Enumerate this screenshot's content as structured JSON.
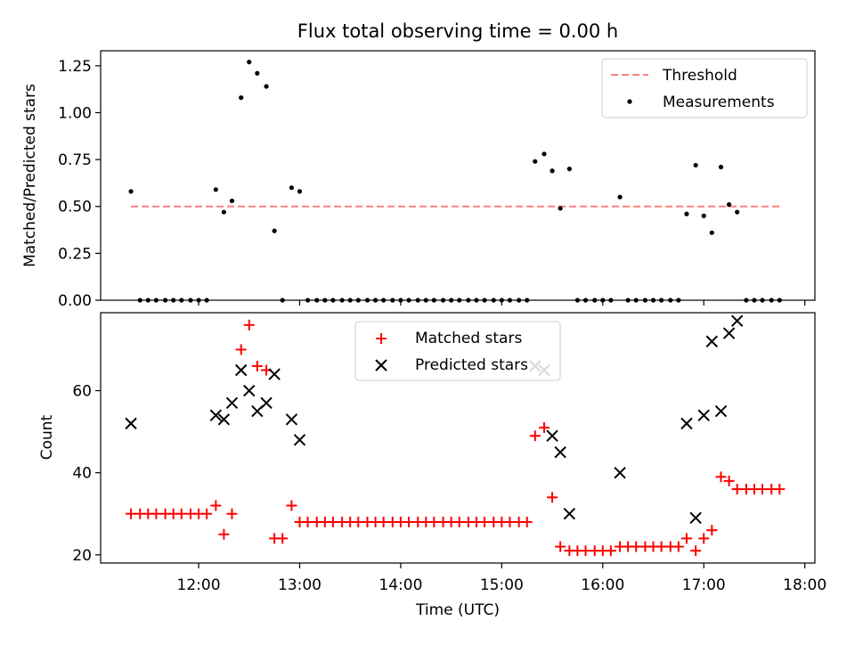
{
  "figure": {
    "title": "Flux total observing time = 0.00 h",
    "xlabel": "Time (UTC)"
  },
  "chart_data": [
    {
      "type": "scatter",
      "ylabel": "Matched/Predicted stars",
      "ylim": [
        0,
        1.33
      ],
      "yticks": [
        0.0,
        0.25,
        0.5,
        0.75,
        1.0,
        1.25
      ],
      "ytick_labels": [
        "0.00",
        "0.25",
        "0.50",
        "0.75",
        "1.00",
        "1.25"
      ],
      "xlim_hours": [
        11.03,
        18.1
      ],
      "legend_position": "top-right",
      "threshold": {
        "name": "Threshold",
        "color": "#ff7f7f",
        "value": 0.5,
        "x_range": [
          11.33,
          17.77
        ]
      },
      "series": [
        {
          "name": "Measurements",
          "color": "#000000",
          "marker": "dot",
          "x": [
            11.33,
            11.42,
            11.5,
            11.58,
            11.67,
            11.75,
            11.83,
            11.92,
            12.0,
            12.08,
            12.17,
            12.25,
            12.33,
            12.42,
            12.5,
            12.58,
            12.67,
            12.75,
            12.83,
            12.92,
            13.0,
            13.08,
            13.17,
            13.25,
            13.33,
            13.42,
            13.5,
            13.58,
            13.67,
            13.75,
            13.83,
            13.92,
            14.0,
            14.08,
            14.17,
            14.25,
            14.33,
            14.42,
            14.5,
            14.58,
            14.67,
            14.75,
            14.83,
            14.92,
            15.0,
            15.08,
            15.17,
            15.25,
            15.33,
            15.42,
            15.5,
            15.58,
            15.67,
            15.75,
            15.83,
            15.92,
            16.0,
            16.08,
            16.17,
            16.25,
            16.33,
            16.42,
            16.5,
            16.58,
            16.67,
            16.75,
            16.83,
            16.92,
            17.0,
            17.08,
            17.17,
            17.25,
            17.33,
            17.42,
            17.5,
            17.58,
            17.67,
            17.75
          ],
          "y": [
            0.58,
            0,
            0,
            0,
            0,
            0,
            0,
            0,
            0,
            0,
            0.59,
            0.47,
            0.53,
            1.08,
            1.27,
            1.21,
            1.14,
            0.37,
            0,
            0.6,
            0.58,
            0,
            0,
            0,
            0,
            0,
            0,
            0,
            0,
            0,
            0,
            0,
            0,
            0,
            0,
            0,
            0,
            0,
            0,
            0,
            0,
            0,
            0,
            0,
            0,
            0,
            0,
            0,
            0.74,
            0.78,
            0.69,
            0.49,
            0.7,
            0,
            0,
            0,
            0,
            0,
            0.55,
            0,
            0,
            0,
            0,
            0,
            0,
            0,
            0.46,
            0.72,
            0.45,
            0.36,
            0.71,
            0.51,
            0.47,
            0,
            0,
            0,
            0,
            0
          ]
        }
      ]
    },
    {
      "type": "scatter",
      "ylabel": "Count",
      "ylim": [
        18,
        79
      ],
      "yticks": [
        20,
        40,
        60
      ],
      "ytick_labels": [
        "20",
        "40",
        "60"
      ],
      "xlim_hours": [
        11.03,
        18.1
      ],
      "xticks_hours": [
        12,
        13,
        14,
        15,
        16,
        17,
        18
      ],
      "xtick_labels": [
        "12:00",
        "13:00",
        "14:00",
        "15:00",
        "16:00",
        "17:00",
        "18:00"
      ],
      "legend_position": "top-center",
      "series": [
        {
          "name": "Matched stars",
          "color": "#ff0000",
          "marker": "plus",
          "x": [
            11.33,
            11.42,
            11.5,
            11.58,
            11.67,
            11.75,
            11.83,
            11.92,
            12.0,
            12.08,
            12.17,
            12.25,
            12.33,
            12.42,
            12.5,
            12.58,
            12.67,
            12.75,
            12.83,
            12.92,
            13.0,
            13.08,
            13.17,
            13.25,
            13.33,
            13.42,
            13.5,
            13.58,
            13.67,
            13.75,
            13.83,
            13.92,
            14.0,
            14.08,
            14.17,
            14.25,
            14.33,
            14.42,
            14.5,
            14.58,
            14.67,
            14.75,
            14.83,
            14.92,
            15.0,
            15.08,
            15.17,
            15.25,
            15.33,
            15.42,
            15.5,
            15.58,
            15.67,
            15.75,
            15.83,
            15.92,
            16.0,
            16.08,
            16.17,
            16.25,
            16.33,
            16.42,
            16.5,
            16.58,
            16.67,
            16.75,
            16.83,
            16.92,
            17.0,
            17.08,
            17.17,
            17.25,
            17.33,
            17.42,
            17.5,
            17.58,
            17.67,
            17.75
          ],
          "y": [
            30,
            30,
            30,
            30,
            30,
            30,
            30,
            30,
            30,
            30,
            32,
            25,
            30,
            70,
            76,
            66,
            65,
            24,
            24,
            32,
            28,
            28,
            28,
            28,
            28,
            28,
            28,
            28,
            28,
            28,
            28,
            28,
            28,
            28,
            28,
            28,
            28,
            28,
            28,
            28,
            28,
            28,
            28,
            28,
            28,
            28,
            28,
            28,
            49,
            51,
            34,
            22,
            21,
            21,
            21,
            21,
            21,
            21,
            22,
            22,
            22,
            22,
            22,
            22,
            22,
            22,
            24,
            21,
            24,
            26,
            39,
            38,
            36,
            36,
            36,
            36,
            36,
            36
          ]
        },
        {
          "name": "Predicted stars",
          "color": "#000000",
          "marker": "x",
          "x": [
            11.33,
            12.17,
            12.25,
            12.33,
            12.42,
            12.5,
            12.58,
            12.67,
            12.75,
            12.92,
            13.0,
            15.33,
            15.42,
            15.5,
            15.58,
            15.67,
            16.17,
            16.83,
            16.92,
            17.0,
            17.08,
            17.17,
            17.25,
            17.33
          ],
          "y": [
            52,
            54,
            53,
            57,
            65,
            60,
            55,
            57,
            64,
            53,
            48,
            66,
            65,
            49,
            45,
            30,
            40,
            52,
            29,
            54,
            72,
            55,
            74,
            77
          ]
        }
      ]
    }
  ]
}
